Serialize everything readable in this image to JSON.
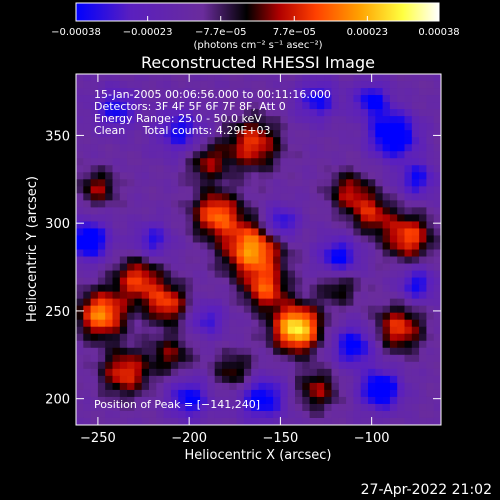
{
  "chart_data": {
    "type": "heatmap",
    "title": "Reconstructed RHESSI Image",
    "xlabel": "Heliocentric X (arcsec)",
    "ylabel": "Heliocentric Y (arcsec)",
    "xlim": [
      -262,
      -62
    ],
    "ylim": [
      185,
      385
    ],
    "x_ticks": [
      {
        "value": -250,
        "label": "−250"
      },
      {
        "value": -200,
        "label": "−200"
      },
      {
        "value": -150,
        "label": "−150"
      },
      {
        "value": -100,
        "label": "−100"
      }
    ],
    "y_ticks": [
      {
        "value": 200,
        "label": "200"
      },
      {
        "value": 250,
        "label": "250"
      },
      {
        "value": 300,
        "label": "300"
      },
      {
        "value": 350,
        "label": "350"
      }
    ],
    "peak": {
      "x": -141,
      "y": 240
    },
    "colorbar": {
      "range": [
        -0.00038,
        0.00038
      ],
      "unit_label": "(photons cm⁻² s⁻¹ asec⁻²)",
      "ticks": [
        {
          "value": -0.00038,
          "label": "−0.00038"
        },
        {
          "value": -0.00023,
          "label": "−0.00023"
        },
        {
          "value": -7.7e-05,
          "label": "−7.7e−05"
        },
        {
          "value": 7.7e-05,
          "label": "7.7e−05"
        },
        {
          "value": 0.00023,
          "label": "0.00023"
        },
        {
          "value": 0.00038,
          "label": "0.00038"
        }
      ],
      "colors": [
        "#0000ff",
        "#5a1fbf",
        "#6a2c9c",
        "#000000",
        "#b00000",
        "#ff4000",
        "#ffa000",
        "#ffff40",
        "#ffffff"
      ]
    },
    "hot_spots": [
      {
        "x": -141,
        "y": 240,
        "amp": 1.0,
        "sigma": 9
      },
      {
        "x": -165,
        "y": 285,
        "amp": 0.8,
        "sigma": 11
      },
      {
        "x": -185,
        "y": 305,
        "amp": 0.65,
        "sigma": 9
      },
      {
        "x": -158,
        "y": 262,
        "amp": 0.55,
        "sigma": 8
      },
      {
        "x": -248,
        "y": 248,
        "amp": 0.75,
        "sigma": 9
      },
      {
        "x": -228,
        "y": 268,
        "amp": 0.55,
        "sigma": 9
      },
      {
        "x": -212,
        "y": 254,
        "amp": 0.55,
        "sigma": 8
      },
      {
        "x": -235,
        "y": 215,
        "amp": 0.55,
        "sigma": 9
      },
      {
        "x": -210,
        "y": 225,
        "amp": 0.35,
        "sigma": 8
      },
      {
        "x": -85,
        "y": 240,
        "amp": 0.55,
        "sigma": 9
      },
      {
        "x": -80,
        "y": 292,
        "amp": 0.6,
        "sigma": 9
      },
      {
        "x": -100,
        "y": 305,
        "amp": 0.45,
        "sigma": 8
      },
      {
        "x": -112,
        "y": 318,
        "amp": 0.42,
        "sigma": 8
      },
      {
        "x": -165,
        "y": 345,
        "amp": 0.55,
        "sigma": 10
      },
      {
        "x": -190,
        "y": 335,
        "amp": 0.4,
        "sigma": 8
      },
      {
        "x": -250,
        "y": 320,
        "amp": 0.4,
        "sigma": 7
      },
      {
        "x": -130,
        "y": 205,
        "amp": 0.4,
        "sigma": 8
      },
      {
        "x": -175,
        "y": 215,
        "amp": 0.35,
        "sigma": 8
      },
      {
        "x": -118,
        "y": 265,
        "amp": 0.35,
        "sigma": 8
      }
    ],
    "cold_spots": [
      {
        "x": -88,
        "y": 350,
        "amp": -0.8,
        "sigma": 9
      },
      {
        "x": -255,
        "y": 290,
        "amp": -0.7,
        "sigma": 8
      },
      {
        "x": -150,
        "y": 300,
        "amp": -0.55,
        "sigma": 7
      },
      {
        "x": -118,
        "y": 280,
        "amp": -0.6,
        "sigma": 8
      },
      {
        "x": -110,
        "y": 230,
        "amp": -0.6,
        "sigma": 8
      },
      {
        "x": -95,
        "y": 205,
        "amp": -0.7,
        "sigma": 8
      },
      {
        "x": -160,
        "y": 200,
        "amp": -0.6,
        "sigma": 9
      },
      {
        "x": -200,
        "y": 200,
        "amp": -0.55,
        "sigma": 8
      },
      {
        "x": -205,
        "y": 352,
        "amp": -0.5,
        "sigma": 9
      },
      {
        "x": -240,
        "y": 365,
        "amp": -0.5,
        "sigma": 8
      },
      {
        "x": -130,
        "y": 370,
        "amp": -0.5,
        "sigma": 8
      },
      {
        "x": -75,
        "y": 325,
        "amp": -0.5,
        "sigma": 7
      },
      {
        "x": -75,
        "y": 265,
        "amp": -0.5,
        "sigma": 7
      },
      {
        "x": -190,
        "y": 245,
        "amp": -0.4,
        "sigma": 7
      },
      {
        "x": -220,
        "y": 290,
        "amp": -0.45,
        "sigma": 7
      },
      {
        "x": -100,
        "y": 370,
        "amp": -0.55,
        "sigma": 7
      }
    ]
  },
  "annotations": {
    "lines": [
      "15-Jan-2005 00:06:56.000 to 00:11:16.000",
      "Detectors: 3F 4F 5F 6F 7F 8F, Att 0",
      "Energy Range: 25.0 - 50.0 keV",
      "Clean     Total counts: 4.29E+03"
    ],
    "peak_label": "Position of Peak = [−141,240]"
  },
  "timestamp": "27-Apr-2022 21:02"
}
